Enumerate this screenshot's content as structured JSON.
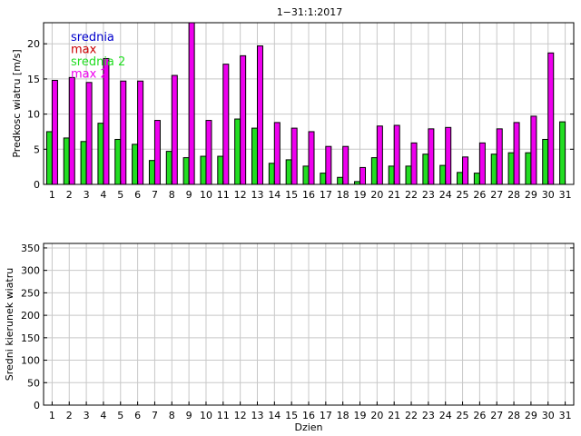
{
  "chart_data": [
    {
      "type": "bar",
      "title": "1−31:1:2017",
      "xlabel": "",
      "ylabel": "Predkosc wiatru [m/s]",
      "categories": [
        "1",
        "2",
        "3",
        "4",
        "5",
        "6",
        "7",
        "8",
        "9",
        "10",
        "11",
        "12",
        "13",
        "14",
        "15",
        "16",
        "17",
        "18",
        "19",
        "20",
        "21",
        "22",
        "23",
        "24",
        "25",
        "26",
        "27",
        "28",
        "29",
        "30",
        "31"
      ],
      "ylim": [
        0,
        23
      ],
      "yticks": [
        0,
        5,
        10,
        15,
        20
      ],
      "grid": true,
      "legend_position": "top-left",
      "legend": [
        {
          "name": "srednia",
          "color": "#0000cc"
        },
        {
          "name": "max",
          "color": "#cc0000"
        },
        {
          "name": "srednia 2",
          "color": "#22dd22"
        },
        {
          "name": "max 2",
          "color": "#ee00ee"
        }
      ],
      "series": [
        {
          "name": "srednia 2",
          "color": "#22dd22",
          "values": [
            7.5,
            6.6,
            6.1,
            8.7,
            6.4,
            5.7,
            3.4,
            4.7,
            3.8,
            4.0,
            4.0,
            9.3,
            8.0,
            3.0,
            3.5,
            2.6,
            1.6,
            1.0,
            0.4,
            3.8,
            2.6,
            2.6,
            4.3,
            2.7,
            1.7,
            1.6,
            4.3,
            4.5,
            4.5,
            6.4,
            8.9
          ]
        },
        {
          "name": "max 2",
          "color": "#ee00ee",
          "values": [
            14.8,
            15.2,
            14.5,
            17.9,
            14.7,
            14.7,
            9.1,
            15.5,
            23.0,
            9.1,
            17.1,
            18.3,
            19.7,
            8.8,
            8.0,
            7.5,
            5.4,
            5.4,
            2.4,
            8.3,
            8.4,
            5.9,
            7.9,
            8.1,
            3.9,
            5.9,
            7.9,
            8.8,
            9.7,
            18.7,
            null
          ]
        }
      ]
    },
    {
      "type": "bar",
      "title": "",
      "xlabel": "Dzien",
      "ylabel": "Sredni kierunek wiatru",
      "categories": [
        "1",
        "2",
        "3",
        "4",
        "5",
        "6",
        "7",
        "8",
        "9",
        "10",
        "11",
        "12",
        "13",
        "14",
        "15",
        "16",
        "17",
        "18",
        "19",
        "20",
        "21",
        "22",
        "23",
        "24",
        "25",
        "26",
        "27",
        "28",
        "29",
        "30",
        "31"
      ],
      "ylim": [
        0,
        360
      ],
      "yticks": [
        0,
        50,
        100,
        150,
        200,
        250,
        300,
        350
      ],
      "grid": true,
      "series": [
        {
          "color": "#0000cc",
          "values": [
            0,
            0,
            0,
            0,
            0,
            0,
            0,
            0,
            0,
            0,
            0,
            0,
            0,
            0,
            0,
            0,
            0,
            0,
            0,
            0,
            0,
            0,
            0,
            0,
            0,
            0,
            0,
            0,
            0,
            0,
            0
          ]
        }
      ]
    }
  ]
}
